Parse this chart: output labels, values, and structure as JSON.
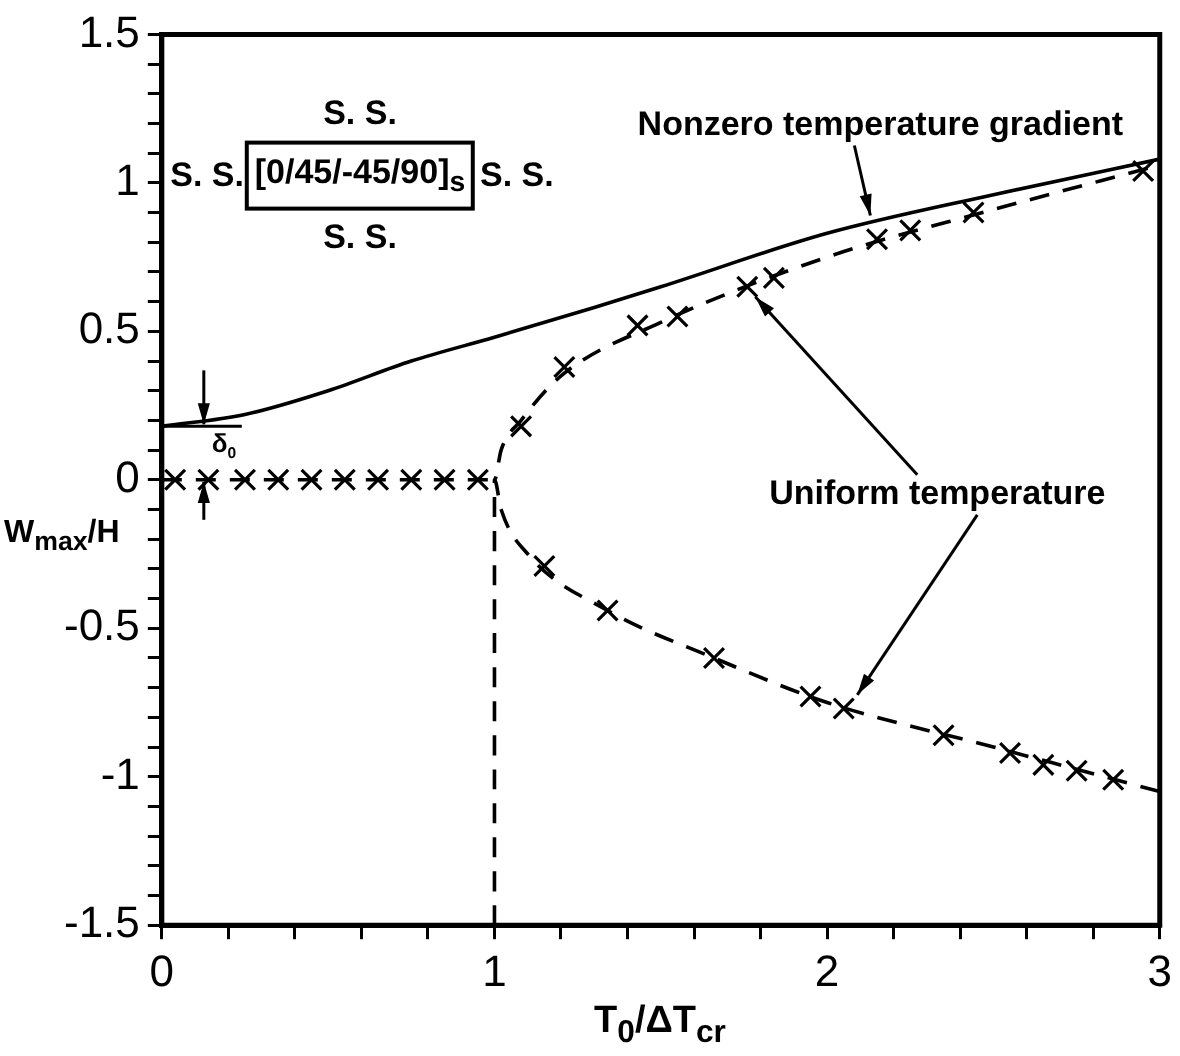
{
  "chart_data": {
    "type": "line",
    "xlabel": "T$_{0}$/ΔT$_{cr}$",
    "ylabel": "W$_{max}$/H",
    "xlim": [
      0,
      3
    ],
    "ylim": [
      -1.5,
      1.5
    ],
    "xticks": [
      0,
      {
        "value": 0.2,
        "label": null
      },
      {
        "value": 0.4,
        "label": null
      },
      {
        "value": 0.6,
        "label": null
      },
      {
        "value": 0.8,
        "label": null
      },
      1,
      {
        "value": 1.2,
        "label": null
      },
      {
        "value": 1.4,
        "label": null
      },
      {
        "value": 1.6,
        "label": null
      },
      {
        "value": 1.8,
        "label": null
      },
      2,
      {
        "value": 2.2,
        "label": null
      },
      {
        "value": 2.4,
        "label": null
      },
      {
        "value": 2.6,
        "label": null
      },
      {
        "value": 2.8,
        "label": null
      },
      3
    ],
    "yticks": [
      -1.5,
      {
        "value": -1.4,
        "label": null
      },
      {
        "value": -1.3,
        "label": null
      },
      {
        "value": -1.2,
        "label": null
      },
      {
        "value": -1.1,
        "label": null
      },
      -1,
      {
        "value": -0.9,
        "label": null
      },
      {
        "value": -0.8,
        "label": null
      },
      {
        "value": -0.7,
        "label": null
      },
      {
        "value": -0.6,
        "label": null
      },
      -0.5,
      {
        "value": -0.4,
        "label": null
      },
      {
        "value": -0.3,
        "label": null
      },
      {
        "value": -0.2,
        "label": null
      },
      {
        "value": -0.1,
        "label": null
      },
      0,
      {
        "value": 0.1,
        "label": null
      },
      {
        "value": 0.2,
        "label": null
      },
      {
        "value": 0.3,
        "label": null
      },
      {
        "value": 0.4,
        "label": null
      },
      0.5,
      {
        "value": 0.6,
        "label": null
      },
      {
        "value": 0.7,
        "label": null
      },
      {
        "value": 0.8,
        "label": null
      },
      {
        "value": 0.9,
        "label": null
      },
      1,
      {
        "value": 1.1,
        "label": null
      },
      {
        "value": 1.2,
        "label": null
      },
      {
        "value": 1.3,
        "label": null
      },
      {
        "value": 1.4,
        "label": null
      },
      1.5
    ],
    "grid": false,
    "series": [
      {
        "type": "line",
        "color": "#000000",
        "line_style": "solid",
        "marker": "none",
        "x": [
          0,
          0.25,
          0.5,
          0.75,
          1,
          1.3,
          1.5,
          2,
          2.5,
          3
        ],
        "values": [
          0.18,
          0.22,
          0.3,
          0.4,
          0.48,
          0.58,
          0.65,
          0.83,
          0.96,
          1.08
        ]
      },
      {
        "type": "line",
        "color": "#000000",
        "line_style": "dashed",
        "marker": "none",
        "x": [
          0,
          1,
          null,
          1,
          1,
          null,
          3,
          2.5,
          2,
          1.66,
          1.34,
          1.1,
          1.02,
          1,
          1.02,
          1.08,
          1.2,
          1.5,
          2,
          2.5,
          3
        ],
        "values": [
          0,
          0,
          null,
          -1.5,
          0,
          null,
          -1.05,
          -0.9,
          -0.75,
          -0.6,
          -0.44,
          -0.25,
          -0.1,
          0,
          0.1,
          0.2,
          0.35,
          0.53,
          0.75,
          0.91,
          1.06
        ]
      },
      {
        "type": "scatter",
        "color": "#000000",
        "marker": "cross",
        "x": [
          0.04,
          0.14,
          0.25,
          0.35,
          0.45,
          0.55,
          0.65,
          0.75,
          0.85,
          0.95,
          1.08,
          1.21,
          1.43,
          1.55,
          1.76,
          1.84,
          2.15,
          2.25,
          2.44,
          2.95,
          1.15,
          1.34,
          1.66,
          1.95,
          2.05,
          2.35,
          2.55,
          2.65,
          2.75,
          2.86
        ],
        "values": [
          0,
          0,
          0,
          0,
          0,
          0,
          0,
          0,
          0,
          0,
          0.18,
          0.38,
          0.52,
          0.55,
          0.65,
          0.68,
          0.81,
          0.84,
          0.9,
          1.04,
          -0.29,
          -0.44,
          -0.6,
          -0.73,
          -0.77,
          -0.86,
          -0.92,
          -0.96,
          -0.98,
          -1.01
        ]
      }
    ],
    "annotations": [
      {
        "text": "Nonzero temperature gradient",
        "x": 2.13,
        "y": 0.87
      },
      {
        "text": "Uniform temperature",
        "x": 1.76,
        "y": 0.65
      },
      {
        "text": "δ$_{0}$",
        "x": 0,
        "y": 0.18
      },
      "S. S.",
      "S. S.",
      "[0/45/-45/90]$_{s}$",
      "S. S.",
      "S. S."
    ]
  }
}
